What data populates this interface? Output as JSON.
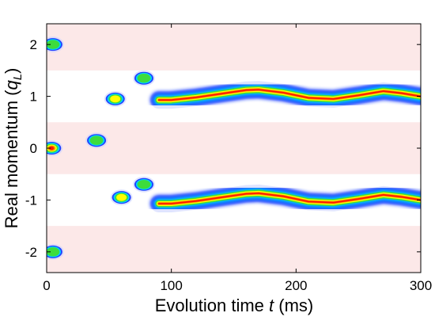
{
  "chart_data": {
    "type": "heatmap",
    "title": "",
    "xlabel_parts": [
      "Evolution time ",
      "t",
      " (ms)"
    ],
    "ylabel_parts": [
      "Real momentum (",
      "q",
      "L",
      ")"
    ],
    "xlim": [
      0,
      300
    ],
    "ylim": [
      -2.4,
      2.4
    ],
    "x_ticks": [
      0,
      100,
      200,
      300
    ],
    "y_ticks": [
      2,
      1,
      0,
      -1,
      -2
    ],
    "x_tick_labels": [
      "0",
      "100",
      "200",
      "300"
    ],
    "y_tick_labels": [
      "2",
      "1",
      "0",
      "-1",
      "-2"
    ],
    "background_bands": [
      {
        "y_range": [
          1.5,
          2.4
        ],
        "color": "#fce8e8"
      },
      {
        "y_range": [
          -0.5,
          0.5
        ],
        "color": "#fce8e8"
      },
      {
        "y_range": [
          -2.4,
          -1.5
        ],
        "color": "#fce8e8"
      }
    ],
    "colormap": [
      "#ffffff",
      "#1f3dff",
      "#00d0ff",
      "#3ddc3d",
      "#ffff00",
      "#ff7f00",
      "#ff1a00"
    ],
    "ridges": [
      {
        "name": "+qL branch",
        "points": [
          [
            90,
            0.93
          ],
          [
            100,
            0.93
          ],
          [
            120,
            0.98
          ],
          [
            140,
            1.05
          ],
          [
            160,
            1.12
          ],
          [
            170,
            1.13
          ],
          [
            190,
            1.07
          ],
          [
            210,
            0.97
          ],
          [
            230,
            0.95
          ],
          [
            250,
            1.02
          ],
          [
            270,
            1.1
          ],
          [
            285,
            1.06
          ],
          [
            300,
            1.0
          ]
        ]
      },
      {
        "name": "-qL branch",
        "points": [
          [
            90,
            -1.07
          ],
          [
            100,
            -1.07
          ],
          [
            120,
            -1.02
          ],
          [
            140,
            -0.95
          ],
          [
            160,
            -0.88
          ],
          [
            170,
            -0.87
          ],
          [
            190,
            -0.93
          ],
          [
            210,
            -1.03
          ],
          [
            230,
            -1.05
          ],
          [
            250,
            -0.98
          ],
          [
            270,
            -0.9
          ],
          [
            285,
            -0.94
          ],
          [
            300,
            -1.0
          ]
        ]
      }
    ],
    "early_peaks": [
      {
        "x": 5,
        "y": 2.0,
        "intensity": 0.45
      },
      {
        "x": 4,
        "y": 0.0,
        "intensity": 0.95
      },
      {
        "x": 5,
        "y": -2.0,
        "intensity": 0.45
      },
      {
        "x": 40,
        "y": 0.15,
        "intensity": 0.55
      },
      {
        "x": 55,
        "y": 0.95,
        "intensity": 0.7
      },
      {
        "x": 60,
        "y": -0.95,
        "intensity": 0.6
      },
      {
        "x": 78,
        "y": 1.35,
        "intensity": 0.5
      },
      {
        "x": 78,
        "y": -0.7,
        "intensity": 0.55
      }
    ]
  }
}
